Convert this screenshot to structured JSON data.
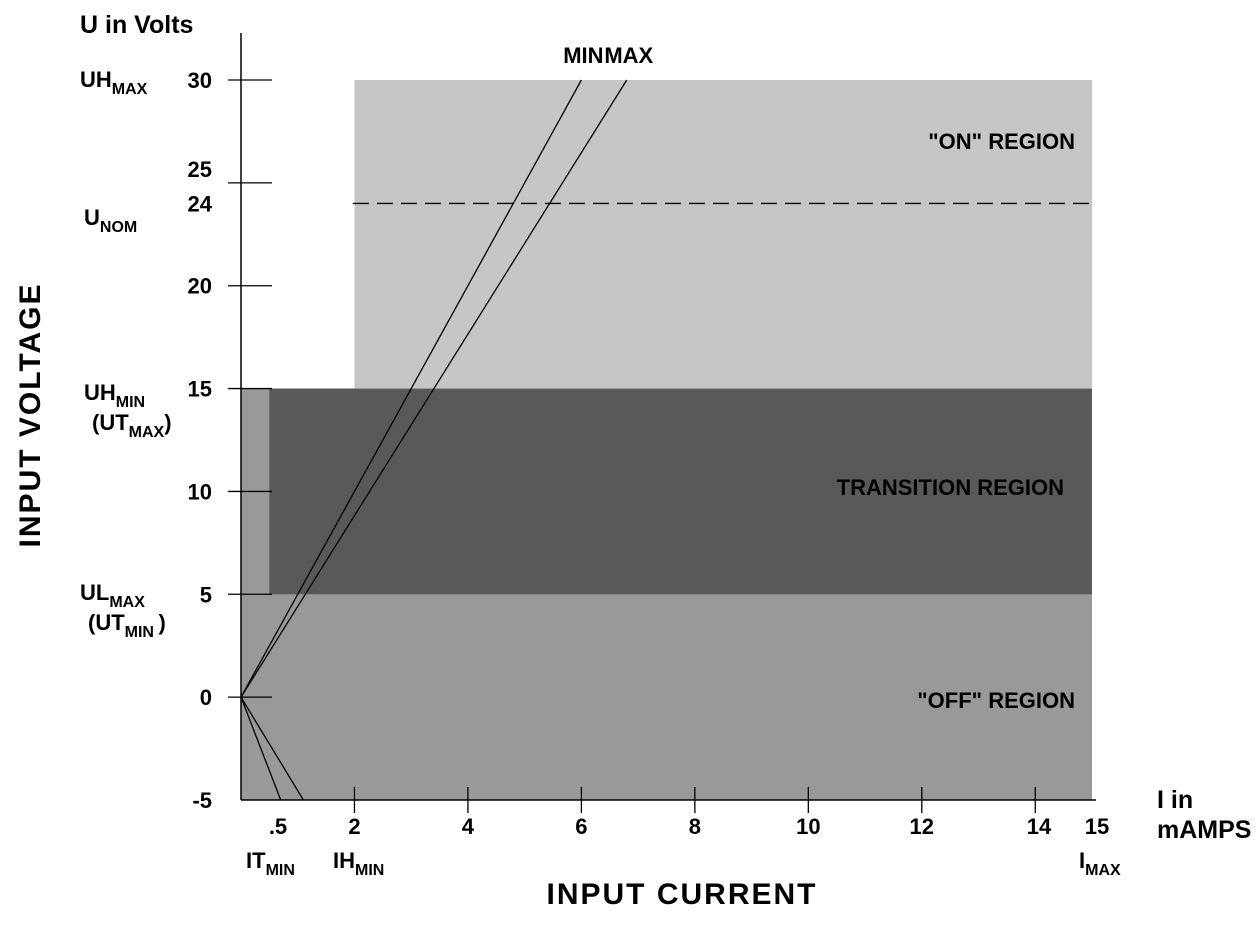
{
  "chart_data": {
    "type": "area",
    "title": "",
    "xlabel": "INPUT CURRENT",
    "ylabel": "INPUT VOLTAGE",
    "x_unit_label": [
      "I in",
      "mAMPS"
    ],
    "y_unit_label": "U in Volts",
    "xlim": [
      0,
      15
    ],
    "ylim": [
      -5,
      30
    ],
    "grid": false,
    "x_ticks": [
      {
        "value": 0.5,
        "label": ".5"
      },
      {
        "value": 2,
        "label": "2"
      },
      {
        "value": 4,
        "label": "4"
      },
      {
        "value": 6,
        "label": "6"
      },
      {
        "value": 8,
        "label": "8"
      },
      {
        "value": 10,
        "label": "10"
      },
      {
        "value": 12,
        "label": "12"
      },
      {
        "value": 14,
        "label": "14"
      },
      {
        "value": 15,
        "label": "15"
      }
    ],
    "y_ticks": [
      {
        "value": 30,
        "label": "30"
      },
      {
        "value": 25,
        "label": "25"
      },
      {
        "value": 24,
        "label": "24"
      },
      {
        "value": 20,
        "label": "20"
      },
      {
        "value": 15,
        "label": "15"
      },
      {
        "value": 10,
        "label": "10"
      },
      {
        "value": 5,
        "label": "5"
      },
      {
        "value": 0,
        "label": "0"
      },
      {
        "value": -5,
        "label": "-5"
      }
    ],
    "y_annotations": [
      {
        "value": 30,
        "main": "UH",
        "sub": "MAX"
      },
      {
        "value": 24,
        "main": "U",
        "sub": "NOM"
      },
      {
        "value": 15,
        "main": "UH",
        "sub": "MIN",
        "line2_main": "(UT",
        "line2_sub": "MAX",
        "line2_end": ")"
      },
      {
        "value": 5,
        "main": "UL",
        "sub": "MAX",
        "line2_main": "(UT",
        "line2_sub": "MIN ",
        "line2_end": ")"
      }
    ],
    "x_annotations": [
      {
        "value": 0.5,
        "main": "IT",
        "sub": "MIN"
      },
      {
        "value": 2,
        "main": "IH",
        "sub": "MIN"
      },
      {
        "value": 15,
        "main": "I",
        "sub": "MAX"
      }
    ],
    "regions": [
      {
        "name": "\"OFF\" REGION",
        "x": [
          0,
          15
        ],
        "y": [
          -5,
          15
        ],
        "color": "#999999"
      },
      {
        "name": "TRANSITION REGION",
        "x": [
          0.5,
          15
        ],
        "y": [
          5,
          15
        ],
        "color": "#595959"
      },
      {
        "name": "\"ON\" REGION",
        "x": [
          2,
          15
        ],
        "y": [
          15,
          30
        ],
        "color": "#c6c6c6"
      }
    ],
    "reference_line": {
      "value": 24,
      "style": "dashed",
      "x": [
        0,
        15
      ]
    },
    "series": [
      {
        "name": "MIN",
        "points": [
          [
            0,
            0
          ],
          [
            6,
            30
          ]
        ]
      },
      {
        "name": "MAX",
        "points": [
          [
            0,
            0
          ],
          [
            6.8,
            30
          ]
        ]
      },
      {
        "name": "",
        "points": [
          [
            0,
            0
          ],
          [
            0.7,
            -5
          ]
        ]
      },
      {
        "name": "",
        "points": [
          [
            0,
            0
          ],
          [
            1.1,
            -5
          ]
        ]
      }
    ]
  }
}
